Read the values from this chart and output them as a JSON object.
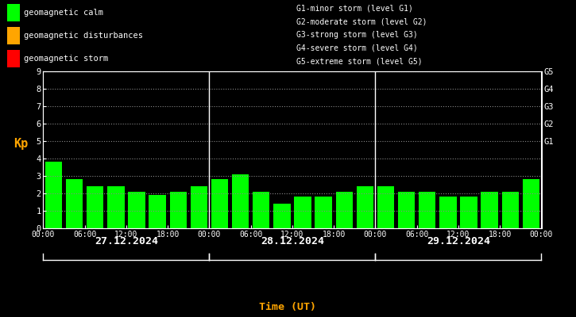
{
  "kp_values": [
    3.8,
    2.8,
    2.4,
    2.4,
    2.1,
    1.9,
    2.1,
    2.4,
    2.8,
    3.1,
    2.1,
    1.4,
    1.8,
    1.8,
    2.1,
    2.4,
    2.4,
    2.1,
    2.1,
    1.8,
    1.8,
    2.1,
    2.1,
    2.8
  ],
  "bar_color": "#00FF00",
  "bg_color": "#000000",
  "text_color": "#FFFFFF",
  "orange_color": "#FFA500",
  "ylabel": "Kp",
  "xlabel": "Time (UT)",
  "ylim": [
    0,
    9
  ],
  "yticks": [
    0,
    1,
    2,
    3,
    4,
    5,
    6,
    7,
    8,
    9
  ],
  "dates": [
    "27.12.2024",
    "28.12.2024",
    "29.12.2024"
  ],
  "right_labels": [
    "G5",
    "G4",
    "G3",
    "G2",
    "G1"
  ],
  "right_label_yvals": [
    9,
    8,
    7,
    6,
    5
  ],
  "legend_items": [
    {
      "label": "geomagnetic calm",
      "color": "#00FF00"
    },
    {
      "label": "geomagnetic disturbances",
      "color": "#FFA500"
    },
    {
      "label": "geomagnetic storm",
      "color": "#FF0000"
    }
  ],
  "legend2_items": [
    "G1-minor storm (level G1)",
    "G2-moderate storm (level G2)",
    "G3-strong storm (level G3)",
    "G4-severe storm (level G4)",
    "G5-extreme storm (level G5)"
  ],
  "grid_color": "#FFFFFF",
  "axis_color": "#FFFFFF",
  "num_bars_per_day": 8,
  "num_days": 3
}
